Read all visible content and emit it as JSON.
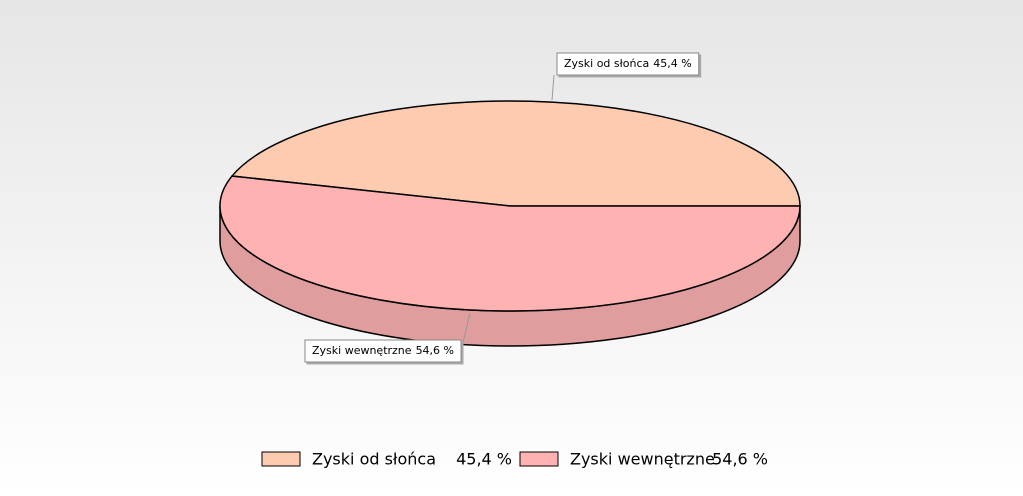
{
  "chart_data": {
    "type": "pie",
    "three_d": true,
    "categories": [
      "Zyski od słońca",
      "Zyski wewnętrzne"
    ],
    "values": [
      45.4,
      54.6
    ],
    "value_labels": [
      "45,4 %",
      "54,6 %"
    ],
    "colors": [
      "#fdcbb0",
      "#feb2b2"
    ],
    "legend": "bottom"
  }
}
